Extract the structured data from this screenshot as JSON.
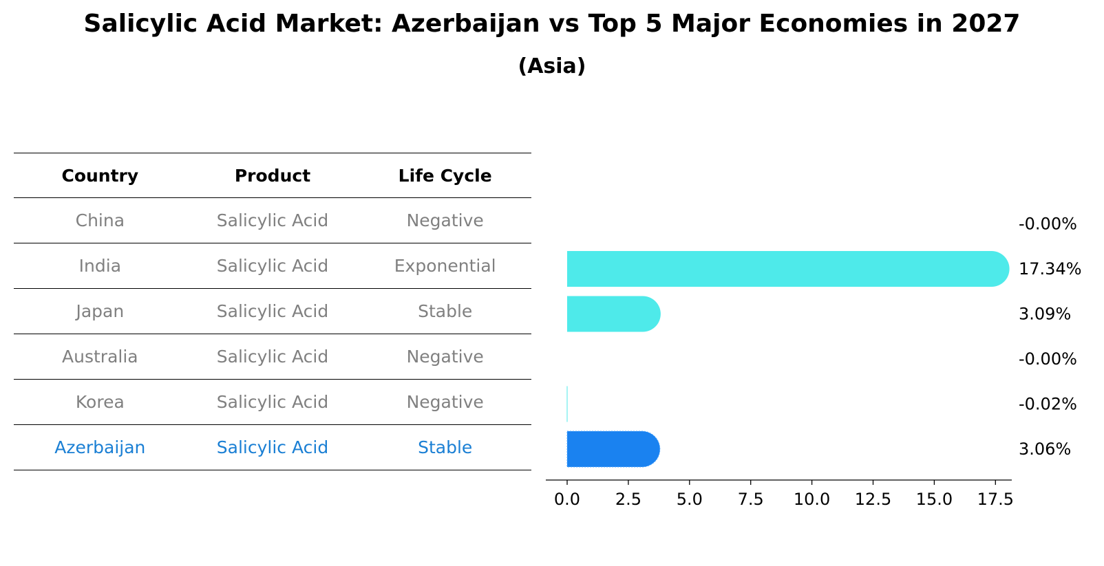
{
  "header": {
    "title": "Salicylic Acid Market: Azerbaijan vs Top 5 Major Economies in 2027",
    "subtitle": "(Asia)"
  },
  "table": {
    "columns": [
      "Country",
      "Product",
      "Life Cycle"
    ],
    "rows": [
      {
        "country": "China",
        "product": "Salicylic Acid",
        "life_cycle": "Negative"
      },
      {
        "country": "India",
        "product": "Salicylic Acid",
        "life_cycle": "Exponential"
      },
      {
        "country": "Japan",
        "product": "Salicylic Acid",
        "life_cycle": "Stable"
      },
      {
        "country": "Australia",
        "product": "Salicylic Acid",
        "life_cycle": "Negative"
      },
      {
        "country": "Korea",
        "product": "Salicylic Acid",
        "life_cycle": "Negative"
      },
      {
        "country": "Azerbaijan",
        "product": "Salicylic Acid",
        "life_cycle": "Stable"
      }
    ]
  },
  "chart_data": {
    "type": "bar",
    "orientation": "horizontal",
    "categories": [
      "China",
      "India",
      "Japan",
      "Australia",
      "Korea",
      "Azerbaijan"
    ],
    "values": [
      -0.0,
      17.34,
      3.09,
      -0.0,
      -0.02,
      3.06
    ],
    "value_labels": [
      "-0.00%",
      "17.34%",
      "3.09%",
      "-0.00%",
      "-0.02%",
      "3.06%"
    ],
    "xlim": [
      -0.9,
      18.2
    ],
    "xticks": [
      0.0,
      2.5,
      5.0,
      7.5,
      10.0,
      12.5,
      15.0,
      17.5
    ],
    "xtick_labels": [
      "0.0",
      "2.5",
      "5.0",
      "7.5",
      "10.0",
      "12.5",
      "15.0",
      "17.5"
    ],
    "highlight": "Azerbaijan",
    "colors": {
      "default": "#4eeaea",
      "highlight": "#1a82f0"
    }
  }
}
